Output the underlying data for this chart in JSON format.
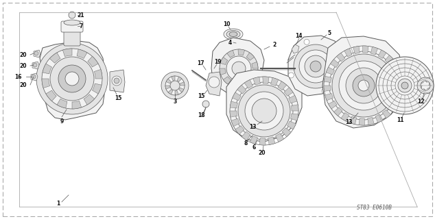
{
  "background_color": "#ffffff",
  "diagram_color": "#555555",
  "label_color": "#111111",
  "watermark": "ST83 E0610B",
  "part_label_fontsize": 6.5,
  "watermark_fontsize": 5.5,
  "border_color": "#999999",
  "light_gray": "#d8d8d8",
  "mid_gray": "#b8b8b8",
  "dark_gray": "#888888",
  "fill_light": "#f2f2f2",
  "fill_mid": "#e4e4e4",
  "fill_dark": "#cccccc"
}
